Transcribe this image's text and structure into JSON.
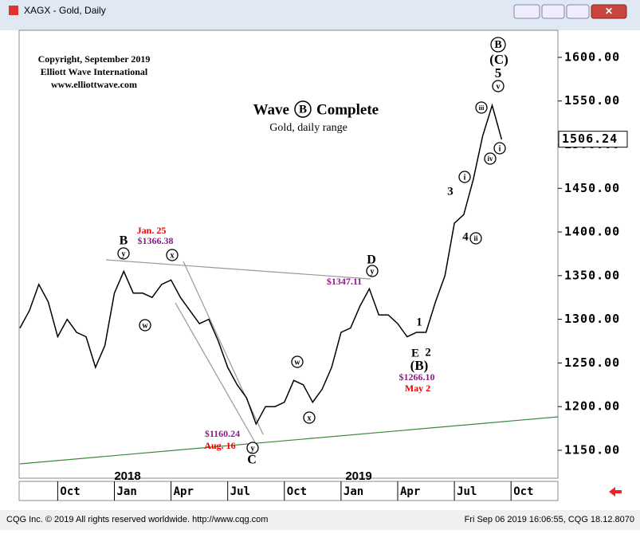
{
  "window_title": "XAGX - Gold, Daily",
  "footer_left": "CQG Inc. © 2019 All rights reserved worldwide. http://www.cqg.com",
  "footer_right": "Fri Sep 06 2019 16:06:55, CQG 18.12.8070",
  "chart_data": {
    "type": "line",
    "title_parts": [
      "Wave",
      "B",
      "Complete"
    ],
    "subtitle": "Gold, daily range",
    "copyright_lines": [
      "Copyright, September 2019",
      "Elliott Wave International",
      "www.elliottwave.com"
    ],
    "categories": [
      null,
      null,
      null,
      null,
      "Oct",
      null,
      null,
      null,
      null,
      null,
      "Jan",
      null,
      null,
      null,
      null,
      null,
      "Apr",
      null,
      null,
      null,
      null,
      null,
      "Jul",
      null,
      null,
      null,
      null,
      null,
      "Oct",
      null,
      null,
      null,
      null,
      null,
      "Jan",
      null,
      null,
      null,
      null,
      null,
      "Apr",
      null,
      null,
      null,
      null,
      null,
      "Jul",
      null,
      null,
      null,
      null,
      null,
      "Oct",
      null,
      null,
      null,
      null,
      null
    ],
    "year_labels": [
      "2018",
      "2019"
    ],
    "series": [
      {
        "name": "XAGX",
        "color": "#000000",
        "values": [
          1290,
          1310,
          1340,
          1320,
          1280,
          1300,
          1285,
          1280,
          1245,
          1270,
          1330,
          1355,
          1330,
          1330,
          1325,
          1340,
          1345,
          1325,
          1310,
          1295,
          1300,
          1275,
          1245,
          1225,
          1210,
          1180,
          1200,
          1200,
          1205,
          1230,
          1225,
          1205,
          1220,
          1245,
          1285,
          1290,
          1315,
          1335,
          1305,
          1305,
          1295,
          1280,
          1285,
          1285,
          1320,
          1350,
          1410,
          1420,
          1460,
          1510,
          1545,
          1506,
          null,
          null,
          null,
          null,
          null,
          null
        ]
      }
    ],
    "last_price": 1506.24,
    "ylim": [
      1118,
      1631
    ],
    "yticks": [
      {
        "value": 1150,
        "label": "1150.00"
      },
      {
        "value": 1200,
        "label": "1200.00"
      },
      {
        "value": 1250,
        "label": "1250.00"
      },
      {
        "value": 1300,
        "label": "1300.00"
      },
      {
        "value": 1350,
        "label": "1350.00"
      },
      {
        "value": 1400,
        "label": "1400.00"
      },
      {
        "value": 1450,
        "label": "1450.00"
      },
      {
        "value": 1500,
        "label": "1500.00"
      },
      {
        "value": 1550,
        "label": "1550.00"
      },
      {
        "value": 1600,
        "label": "1600.00"
      }
    ],
    "annotations": [
      "Jan. 25",
      "$1366.38",
      "B",
      "y",
      "x",
      "w",
      "D",
      "$1347.11",
      "y",
      "1",
      "E",
      "2",
      "(B)",
      "$1266.10",
      "May 2",
      "3",
      "i",
      "4",
      "ii",
      "iii",
      "iv",
      "i",
      "v",
      "5",
      "(C)",
      "B",
      "w",
      "x",
      "$1160.24",
      "Aug. 16",
      "y",
      "C"
    ]
  }
}
